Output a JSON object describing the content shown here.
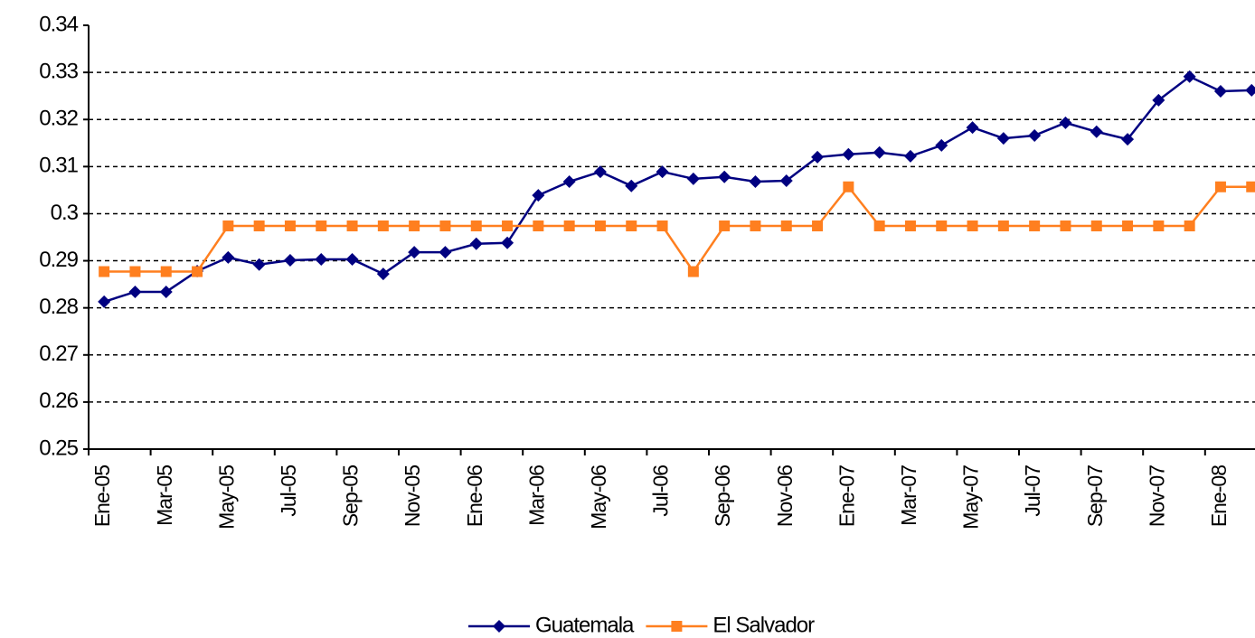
{
  "chart_data": {
    "type": "line",
    "categories": [
      "Ene-05",
      null,
      "Mar-05",
      null,
      "May-05",
      null,
      "Jul-05",
      null,
      "Sep-05",
      null,
      "Nov-05",
      null,
      "Ene-06",
      null,
      "Mar-06",
      null,
      "May-06",
      null,
      "Jul-06",
      null,
      "Sep-06",
      null,
      "Nov-06",
      null,
      "Ene-07",
      null,
      "Mar-07",
      null,
      "May-07",
      null,
      "Jul-07",
      null,
      "Sep-07",
      null,
      "Nov-07",
      null,
      "Ene-08",
      null
    ],
    "series": [
      {
        "name": "Guatemala",
        "color": "#000080",
        "marker": "diamond",
        "values": [
          0.2813,
          0.2834,
          0.2834,
          0.2878,
          0.2907,
          0.2892,
          0.2901,
          0.2903,
          0.2903,
          0.2872,
          0.2918,
          0.2918,
          0.2936,
          0.2938,
          0.3039,
          0.3068,
          0.3089,
          0.3059,
          0.3089,
          0.3074,
          0.3078,
          0.3068,
          0.307,
          0.312,
          0.3126,
          0.313,
          0.3122,
          0.3145,
          0.3183,
          0.316,
          0.3166,
          0.3193,
          0.3174,
          0.3158,
          0.3241,
          0.3291,
          0.326,
          0.3262
        ]
      },
      {
        "name": "El Salvador",
        "color": "#ff7f1f",
        "marker": "square",
        "values": [
          0.2877,
          0.2877,
          0.2877,
          0.2877,
          0.2974,
          0.2974,
          0.2974,
          0.2974,
          0.2974,
          0.2974,
          0.2974,
          0.2974,
          0.2974,
          0.2974,
          0.2974,
          0.2974,
          0.2974,
          0.2974,
          0.2974,
          0.2877,
          0.2974,
          0.2974,
          0.2974,
          0.2974,
          0.3057,
          0.2974,
          0.2974,
          0.2974,
          0.2974,
          0.2974,
          0.2974,
          0.2974,
          0.2974,
          0.2974,
          0.2974,
          0.2974,
          0.3057,
          0.3057
        ]
      }
    ],
    "ylim": [
      0.25,
      0.34
    ],
    "yticks": [
      0.25,
      0.26,
      0.27,
      0.28,
      0.29,
      0.3,
      0.31,
      0.32,
      0.33,
      0.34
    ],
    "grid": true,
    "legend": "bottom"
  }
}
